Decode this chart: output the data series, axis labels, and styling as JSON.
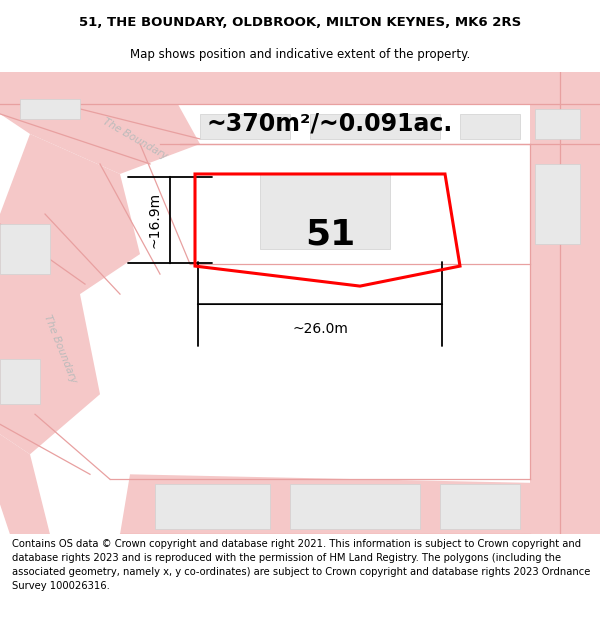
{
  "title_line1": "51, THE BOUNDARY, OLDBROOK, MILTON KEYNES, MK6 2RS",
  "title_line2": "Map shows position and indicative extent of the property.",
  "area_text": "~370m²/~0.091ac.",
  "label_51": "51",
  "dim_height": "~16.9m",
  "dim_width": "~26.0m",
  "footer_text": "Contains OS data © Crown copyright and database right 2021. This information is subject to Crown copyright and database rights 2023 and is reproduced with the permission of HM Land Registry. The polygons (including the associated geometry, namely x, y co-ordinates) are subject to Crown copyright and database rights 2023 Ordnance Survey 100026316.",
  "bg_color": "#ffffff",
  "map_bg": "#ffffff",
  "road_color_light": "#f5c8c8",
  "road_outline": "#e8a0a0",
  "building_fill": "#e8e8e8",
  "building_outline": "#d0d0d0",
  "property_color": "#ff0000",
  "text_color": "#000000",
  "gray_text": "#aaaaaa",
  "title_fontsize": 9.5,
  "subtitle_fontsize": 8.5,
  "area_fontsize": 17,
  "label_fontsize": 26,
  "dim_fontsize": 10,
  "footer_fontsize": 7.2,
  "road_label_color": "#bbbbbb",
  "road_label_size": 7.5
}
